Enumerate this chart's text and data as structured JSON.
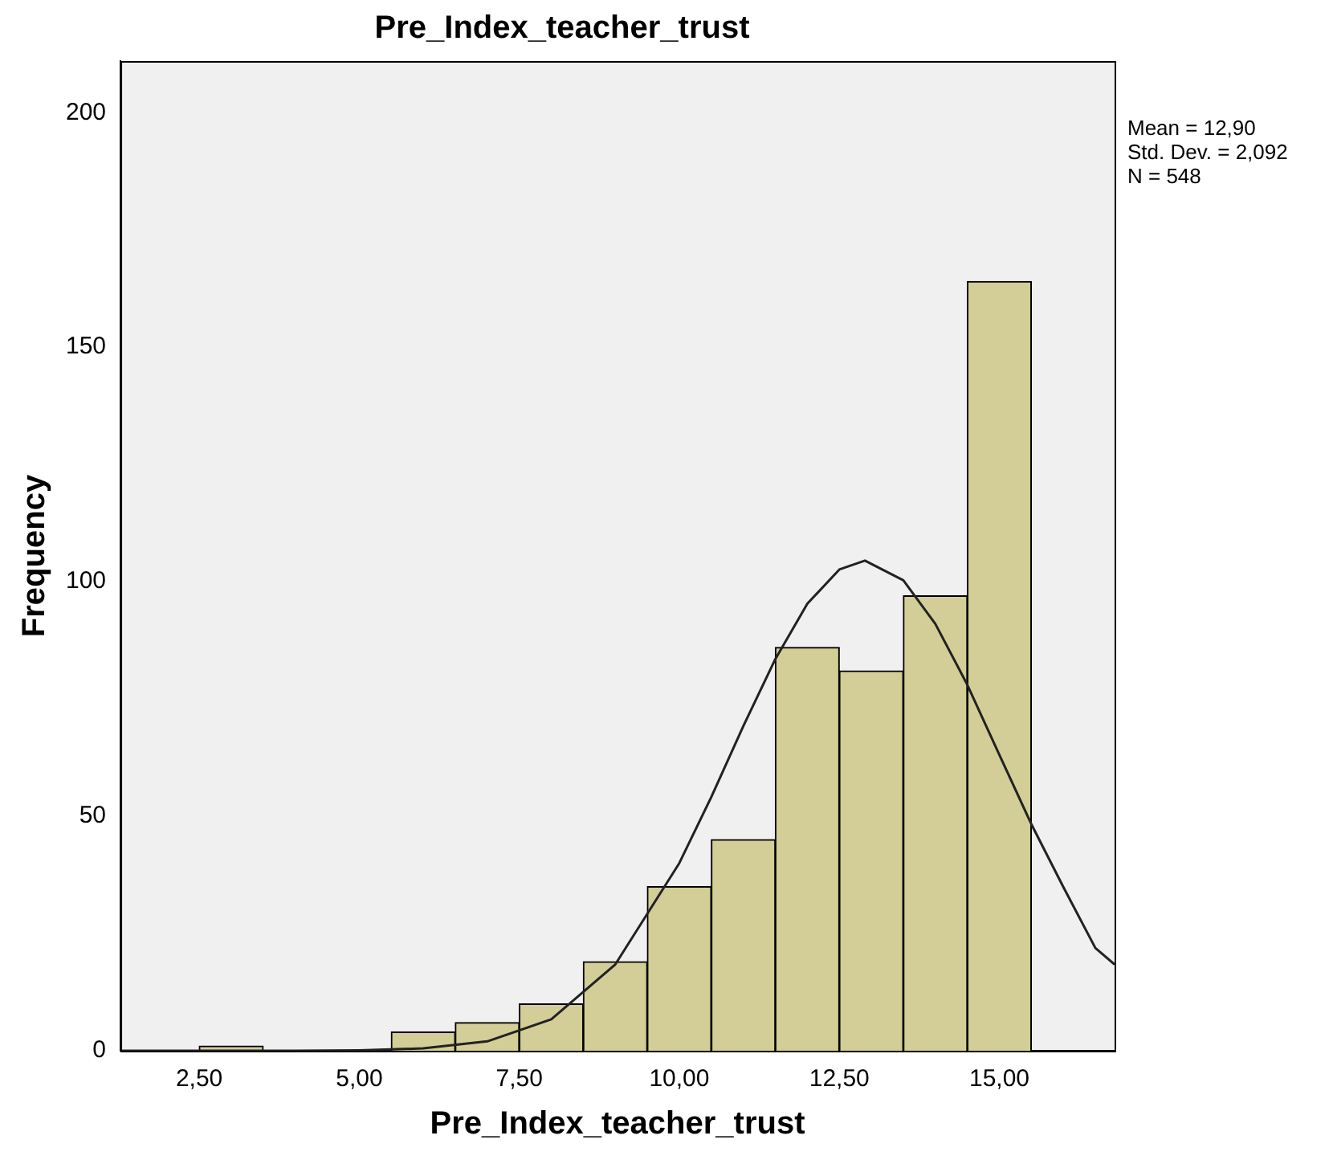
{
  "chart_data": {
    "type": "histogram",
    "title": "Pre_Index_teacher_trust",
    "xlabel": "Pre_Index_teacher_trust",
    "ylabel": "Frequency",
    "bins": [
      2.5,
      3.5,
      4.5,
      5.5,
      6.5,
      7.5,
      8.5,
      9.5,
      10.5,
      11.5,
      12.5,
      13.5,
      14.5,
      15.5
    ],
    "values": [
      1,
      0,
      0,
      4,
      6,
      10,
      19,
      35,
      45,
      86,
      81,
      97,
      164
    ],
    "color": "#d3ce97",
    "series": [
      {
        "type": "line",
        "color": "#222222",
        "x": [
          1.27,
          4,
          5,
          6,
          7,
          8,
          9,
          10,
          10.5,
          11,
          11.5,
          12,
          12.5,
          12.9,
          13.5,
          14,
          14.5,
          15,
          15.5,
          16,
          16.5,
          16.8
        ],
        "values": [
          0,
          0,
          0.1,
          0.5,
          2,
          6.7,
          18.4,
          40,
          54.1,
          69.2,
          83.5,
          95.3,
          102.6,
          104.5,
          100.3,
          91,
          78,
          63.1,
          48.3,
          34.9,
          21.9,
          18.4
        ]
      }
    ],
    "xlim": [
      1.27,
      16.8
    ],
    "xticks": [
      {
        "value": 2.5,
        "label": "2,50"
      },
      {
        "value": 5,
        "label": "5,00"
      },
      {
        "value": 7.5,
        "label": "7,50"
      },
      {
        "value": 10,
        "label": "10,00"
      },
      {
        "value": 12.5,
        "label": "12,50"
      },
      {
        "value": 15,
        "label": "15,00"
      }
    ],
    "ylim": [
      0,
      211
    ],
    "yticks": [
      0,
      50,
      100,
      150,
      200
    ],
    "annotations": [
      "Mean = 12,90",
      "Std. Dev. = 2,092",
      "N = 548"
    ]
  }
}
